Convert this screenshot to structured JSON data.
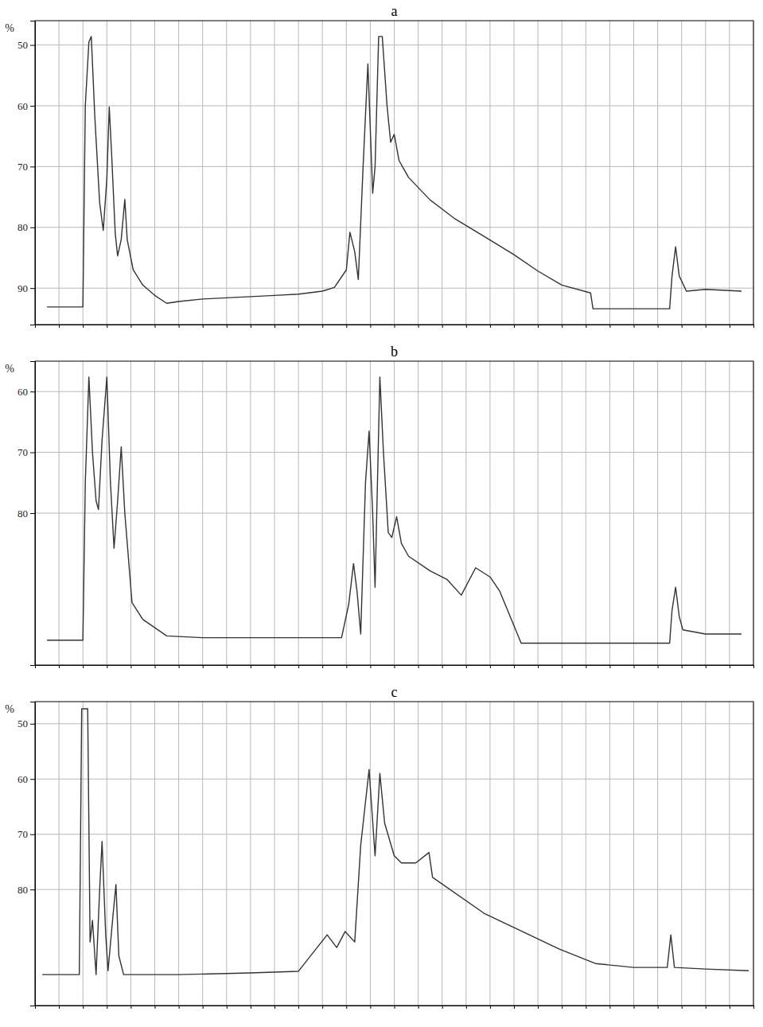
{
  "chart_data": [
    {
      "type": "line",
      "title": "a",
      "y_label": "%",
      "grid": true,
      "tick_labels": "y",
      "xlim": [
        0,
        30
      ],
      "xticks": [
        0,
        1,
        2,
        3,
        4,
        5,
        6,
        7,
        8,
        9,
        10,
        11,
        12,
        13,
        14,
        15,
        16,
        17,
        18,
        19,
        20,
        21,
        22,
        23,
        24,
        25,
        26,
        27,
        28,
        29,
        30
      ],
      "ylim": [
        96,
        46
      ],
      "yticks": [
        50,
        60,
        70,
        80,
        90
      ],
      "x": [
        0.5,
        2.0,
        2.1,
        2.25,
        2.35,
        2.5,
        2.7,
        2.85,
        3.0,
        3.1,
        3.2,
        3.35,
        3.45,
        3.6,
        3.75,
        3.85,
        4.1,
        4.5,
        5.0,
        5.5,
        6,
        7,
        8,
        9,
        10,
        11,
        12,
        12.5,
        13,
        13.15,
        13.35,
        13.5,
        13.7,
        13.9,
        14.1,
        14.2,
        14.35,
        14.5,
        14.7,
        14.85,
        15.0,
        15.2,
        15.6,
        16.5,
        17.5,
        18.75,
        20,
        21,
        22,
        23.2,
        23.3,
        26.5,
        26.6,
        26.75,
        26.9,
        27.2,
        28,
        29.5
      ],
      "series": [
        {
          "color": "#333333",
          "values": [
            93.1,
            93.1,
            60,
            49.5,
            48.6,
            62,
            76,
            80.5,
            72,
            60.2,
            68,
            81,
            84.7,
            82,
            75.4,
            82,
            87,
            89.5,
            91.2,
            92.5,
            92.2,
            91.8,
            91.6,
            91.4,
            91.2,
            91,
            90.5,
            89.9,
            87,
            80.8,
            84,
            88.6,
            70,
            53.1,
            74.4,
            70,
            48.6,
            48.6,
            60,
            66,
            64.7,
            69,
            71.8,
            75.5,
            78.5,
            81.5,
            84.5,
            87.2,
            89.5,
            90.8,
            93.4,
            93.4,
            88,
            83.2,
            88,
            90.5,
            90.2,
            90.5
          ]
        }
      ]
    },
    {
      "type": "line",
      "title": "b",
      "y_label": "%",
      "grid": true,
      "tick_labels": "y",
      "xlim": [
        0,
        30
      ],
      "xticks": [
        0,
        1,
        2,
        3,
        4,
        5,
        6,
        7,
        8,
        9,
        10,
        11,
        12,
        13,
        14,
        15,
        16,
        17,
        18,
        19,
        20,
        21,
        22,
        23,
        24,
        25,
        26,
        27,
        28,
        29,
        30
      ],
      "ylim": [
        105,
        55
      ],
      "yticks": [
        60,
        70,
        80
      ],
      "x": [
        0.5,
        2.0,
        2.1,
        2.25,
        2.4,
        2.55,
        2.65,
        2.8,
        3.0,
        3.15,
        3.3,
        3.45,
        3.6,
        3.75,
        4.05,
        4.5,
        5.5,
        7,
        9,
        11,
        12.8,
        13.1,
        13.3,
        13.45,
        13.6,
        13.8,
        13.95,
        14.1,
        14.2,
        14.3,
        14.4,
        14.55,
        14.75,
        14.9,
        15.1,
        15.3,
        15.6,
        16.5,
        17.2,
        17.8,
        18.4,
        19.0,
        19.4,
        20.3,
        26.5,
        26.6,
        26.75,
        26.9,
        27.05,
        28,
        29.5
      ],
      "series": [
        {
          "color": "#333333",
          "values": [
            100.9,
            100.9,
            75,
            57.6,
            70,
            78,
            79.4,
            68,
            57.6,
            75,
            85.8,
            78,
            69.1,
            80,
            94.7,
            97.5,
            100.2,
            100.5,
            100.5,
            100.5,
            100.5,
            95,
            88.3,
            93,
            99.9,
            75,
            66.5,
            80,
            92.2,
            75,
            57.6,
            70,
            83.2,
            84,
            80.6,
            85,
            87.1,
            89.5,
            90.9,
            93.5,
            89,
            90.5,
            92.8,
            101.4,
            101.4,
            96,
            92.2,
            97,
            99.2,
            99.9,
            99.9
          ]
        }
      ]
    },
    {
      "type": "line",
      "title": "c",
      "y_label": "%",
      "grid": true,
      "tick_labels": "y",
      "xlim": [
        0,
        30
      ],
      "xticks": [
        0,
        1,
        2,
        3,
        4,
        5,
        6,
        7,
        8,
        9,
        10,
        11,
        12,
        13,
        14,
        15,
        16,
        17,
        18,
        19,
        20,
        21,
        22,
        23,
        24,
        25,
        26,
        27,
        28,
        29,
        30
      ],
      "ylim": [
        101,
        46
      ],
      "yticks": [
        50,
        60,
        70,
        80
      ],
      "x": [
        0.3,
        1.85,
        1.95,
        2.2,
        2.3,
        2.4,
        2.55,
        2.7,
        2.8,
        2.95,
        3.05,
        3.25,
        3.38,
        3.5,
        3.7,
        6,
        9,
        11,
        12.2,
        12.6,
        12.95,
        13.35,
        13.6,
        13.95,
        14.2,
        14.4,
        14.6,
        15,
        15.3,
        15.9,
        16.45,
        16.6,
        18.75,
        21.9,
        23.4,
        25,
        26.4,
        26.55,
        26.7,
        28,
        29.8
      ],
      "series": [
        {
          "color": "#333333",
          "values": [
            95.4,
            95.4,
            47.3,
            47.3,
            89.5,
            85.6,
            95.4,
            80,
            71.3,
            88,
            94.7,
            85,
            79.1,
            92,
            95.4,
            95.4,
            95.1,
            94.8,
            88.2,
            90.5,
            87.6,
            89.5,
            72,
            58.3,
            73.9,
            59,
            68,
            73.9,
            75.2,
            75.2,
            73.3,
            77.8,
            84.3,
            90.8,
            93.4,
            94.1,
            94.1,
            88.2,
            94.1,
            94.4,
            94.7
          ]
        }
      ]
    }
  ]
}
